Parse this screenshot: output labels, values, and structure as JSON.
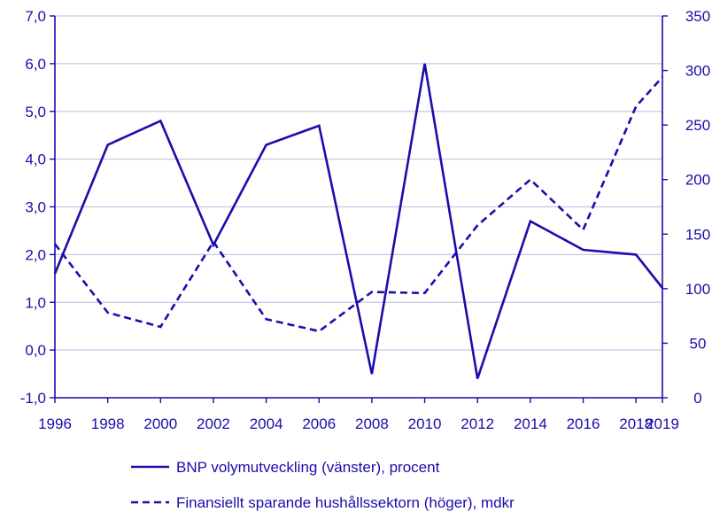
{
  "colors": {
    "series": "#1a0dab",
    "axis": "#1a0dab",
    "grid": "#c8c6e6",
    "text": "#1a0dab"
  },
  "chart_data": {
    "type": "line",
    "x": [
      1996,
      1998,
      2000,
      2002,
      2004,
      2006,
      2008,
      2010,
      2012,
      2014,
      2016,
      2018,
      2019
    ],
    "x_tick_labels": [
      "1996",
      "1998",
      "2000",
      "2002",
      "2004",
      "2006",
      "2008",
      "2010",
      "2012",
      "2014",
      "2016",
      "2018",
      "2019"
    ],
    "y_left": {
      "lim": [
        -1.0,
        7.0
      ],
      "ticks": [
        -1.0,
        0.0,
        1.0,
        2.0,
        3.0,
        4.0,
        5.0,
        6.0,
        7.0
      ],
      "tick_labels": [
        "-1,0",
        "0,0",
        "1,0",
        "2,0",
        "3,0",
        "4,0",
        "5,0",
        "6,0",
        "7,0"
      ]
    },
    "y_right": {
      "lim": [
        0,
        350
      ],
      "ticks": [
        0,
        50,
        100,
        150,
        200,
        250,
        300,
        350
      ],
      "tick_labels": [
        "0",
        "50",
        "100",
        "150",
        "200",
        "250",
        "300",
        "350"
      ]
    },
    "grid": true,
    "legend_position": "bottom",
    "series": [
      {
        "name": "BNP volymutveckling (vänster), procent",
        "axis": "left",
        "style": "solid",
        "values": [
          1.6,
          4.3,
          4.8,
          2.2,
          4.3,
          4.7,
          -0.5,
          6.0,
          -0.6,
          2.7,
          2.1,
          2.0,
          1.3
        ]
      },
      {
        "name": "Finansiellt sparande hushållssektorn (höger), mdkr",
        "axis": "right",
        "style": "dashed",
        "values": [
          141,
          78,
          65,
          143,
          72,
          61,
          97,
          96,
          158,
          200,
          154,
          267,
          294
        ]
      }
    ]
  }
}
